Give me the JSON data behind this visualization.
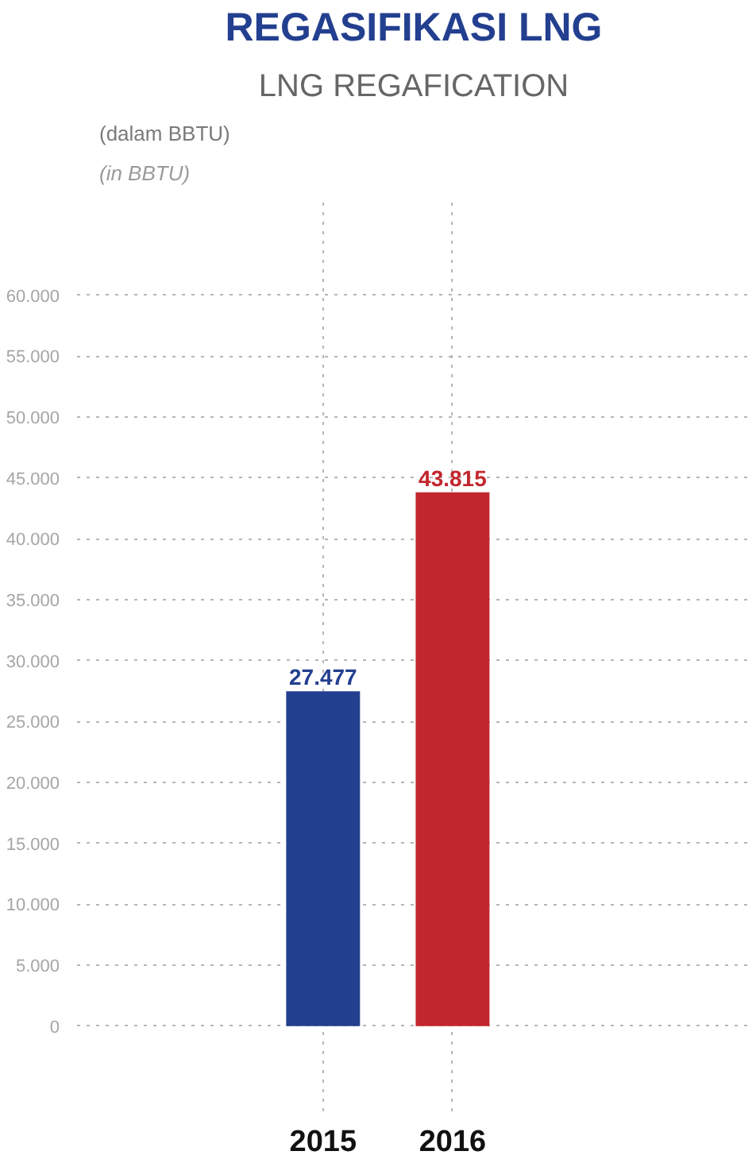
{
  "chart_data": {
    "type": "bar",
    "title": "REGASIFIKASI LNG",
    "subtitle": "LNG REGAFICATION",
    "ylabel": "(dalam BBTU)",
    "annotations": [
      "(in BBTU)"
    ],
    "categories": [
      "2015",
      "2016"
    ],
    "values": [
      27477,
      43815
    ],
    "colors": [
      "#233f8f",
      "#c1272d"
    ],
    "value_labels": [
      "27.477",
      "43.815"
    ],
    "ylim": [
      -7000,
      68000
    ],
    "yticks": [
      0,
      {
        "value": 5000,
        "label": "5.000"
      },
      {
        "value": 10000,
        "label": "10.000"
      },
      {
        "value": 15000,
        "label": "15.000"
      },
      {
        "value": 20000,
        "label": "20.000"
      },
      {
        "value": 25000,
        "label": "25.000"
      },
      {
        "value": 30000,
        "label": "30.000"
      },
      {
        "value": 35000,
        "label": "35.000"
      },
      {
        "value": 40000,
        "label": "40.000"
      },
      {
        "value": 45000,
        "label": "45.000"
      },
      {
        "value": 50000,
        "label": "50.000"
      },
      {
        "value": 55000,
        "label": "55.000"
      },
      {
        "value": 60000,
        "label": "60.000"
      }
    ],
    "grid": true
  }
}
